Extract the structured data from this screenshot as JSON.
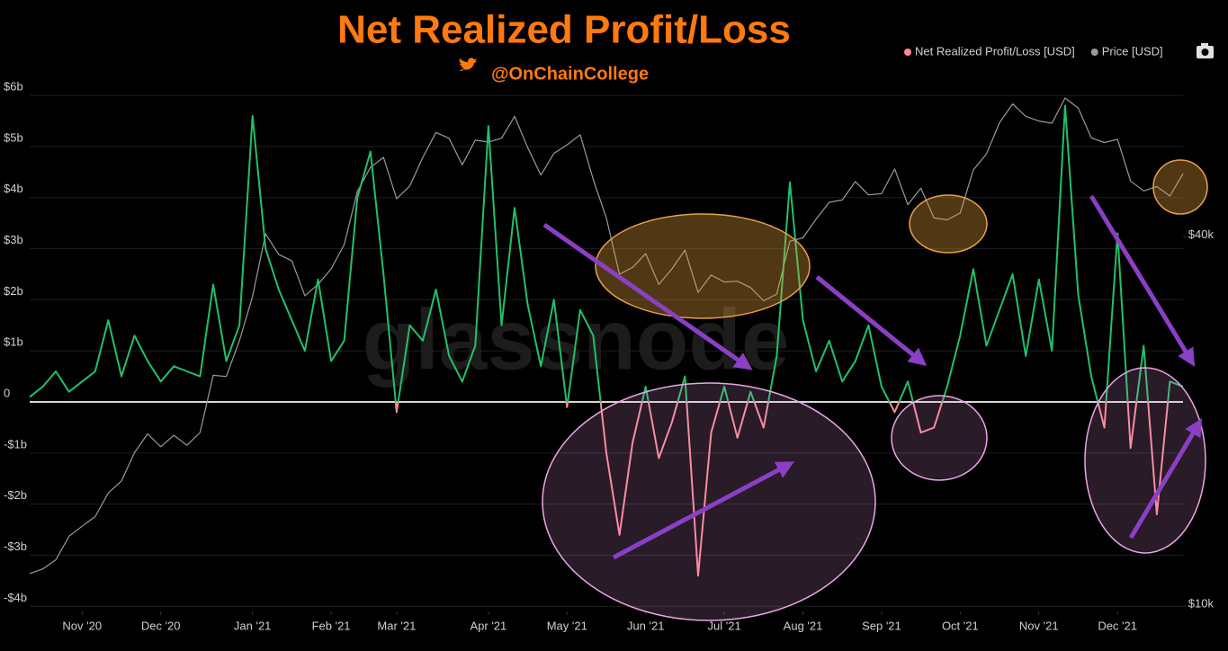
{
  "chart_data": {
    "type": "line",
    "title": "Net Realized Profit/Loss",
    "subtitle": "@OnChainCollege",
    "watermark": "glassnode",
    "categories": [
      null,
      null,
      null,
      null,
      "Nov '20",
      null,
      null,
      null,
      null,
      null,
      "Dec '20",
      null,
      null,
      null,
      null,
      null,
      null,
      "Jan '21",
      null,
      null,
      null,
      null,
      null,
      "Feb '21",
      null,
      null,
      null,
      null,
      "Mar '21",
      null,
      null,
      null,
      null,
      null,
      null,
      "Apr '21",
      null,
      null,
      null,
      null,
      null,
      "May '21",
      null,
      null,
      null,
      null,
      null,
      "Jun '21",
      null,
      null,
      null,
      null,
      null,
      "Jul '21",
      null,
      null,
      null,
      null,
      null,
      "Aug '21",
      null,
      null,
      null,
      null,
      null,
      "Sep '21",
      null,
      null,
      null,
      null,
      null,
      "Oct '21",
      null,
      null,
      null,
      null,
      null,
      "Nov '21",
      null,
      null,
      null,
      null,
      null,
      "Dec '21",
      null,
      null,
      null,
      null,
      null
    ],
    "series": [
      {
        "name": "Net Realized Profit/Loss [USD]",
        "color": "#22c06a",
        "negative_color": "#ff8a96",
        "legend_color": "#ff8a96",
        "values": [
          0.1,
          0.3,
          0.6,
          0.2,
          0.4,
          0.6,
          1.6,
          0.5,
          1.3,
          0.8,
          0.4,
          0.7,
          0.6,
          0.5,
          2.3,
          0.8,
          1.5,
          5.6,
          3.0,
          2.2,
          1.6,
          1.0,
          2.4,
          0.8,
          1.2,
          4.0,
          4.9,
          2.5,
          -0.2,
          1.5,
          1.2,
          2.2,
          0.9,
          0.4,
          1.1,
          5.4,
          1.5,
          3.8,
          1.9,
          0.7,
          2.0,
          -0.1,
          1.8,
          1.3,
          -1.0,
          -2.6,
          -0.8,
          0.3,
          -1.1,
          -0.4,
          0.5,
          -3.4,
          -0.6,
          0.3,
          -0.7,
          0.2,
          -0.5,
          0.9,
          4.3,
          1.6,
          0.6,
          1.2,
          0.4,
          0.8,
          1.5,
          0.3,
          -0.2,
          0.4,
          -0.6,
          -0.5,
          0.3,
          1.3,
          2.6,
          1.1,
          1.8,
          2.5,
          0.9,
          2.4,
          1.0,
          5.8,
          2.1,
          0.5,
          -0.5,
          3.3,
          -0.9,
          1.1,
          -2.2,
          0.4,
          0.3
        ]
      },
      {
        "name": "Price [USD]",
        "color": "#9a9a9a",
        "axis": "y2",
        "values": [
          11.3,
          11.5,
          11.9,
          13.0,
          13.5,
          14.0,
          15.3,
          16.0,
          17.8,
          19.1,
          18.2,
          19.0,
          18.3,
          19.2,
          23.8,
          23.7,
          27.1,
          32.0,
          40.5,
          37.5,
          36.6,
          32.1,
          33.5,
          35.5,
          38.9,
          47.5,
          52.0,
          54.0,
          46.2,
          48.5,
          54.0,
          59.3,
          58.0,
          52.5,
          57.6,
          57.2,
          58.0,
          63.0,
          56.0,
          50.5,
          54.8,
          56.6,
          58.8,
          49.7,
          43.0,
          34.8,
          35.7,
          37.6,
          33.5,
          35.5,
          38.1,
          32.5,
          34.7,
          33.8,
          33.9,
          33.1,
          31.5,
          32.3,
          39.4,
          39.9,
          42.8,
          45.6,
          46.0,
          49.3,
          46.9,
          47.1,
          51.7,
          45.2,
          48.1,
          43.0,
          42.7,
          43.8,
          51.5,
          54.7,
          61.5,
          66.0,
          63.0,
          61.9,
          61.4,
          67.5,
          65.0,
          58.1,
          57.1,
          57.8,
          49.4,
          47.6,
          48.4,
          46.7,
          50.8
        ]
      }
    ],
    "ylim": [
      -4.1,
      6.9
    ],
    "yticks": [
      {
        "value": 6,
        "label": "$6b"
      },
      {
        "value": 5,
        "label": "$5b"
      },
      {
        "value": 4,
        "label": "$4b"
      },
      {
        "value": 3,
        "label": "$3b"
      },
      {
        "value": 2,
        "label": "$2b"
      },
      {
        "value": 1,
        "label": "$1b"
      },
      0,
      {
        "value": -1,
        "label": "-$1b"
      },
      {
        "value": -2,
        "label": "-$2b"
      },
      {
        "value": -3,
        "label": "-$3b"
      },
      {
        "value": -4,
        "label": "-$4b"
      }
    ],
    "y2lim": [
      9.8,
      81
    ],
    "y2ticks": [
      {
        "value": 10,
        "label": "$10k"
      },
      {
        "value": 40,
        "label": "$40k"
      }
    ],
    "y2scale": "log",
    "grid": true,
    "legend": "top-right"
  }
}
